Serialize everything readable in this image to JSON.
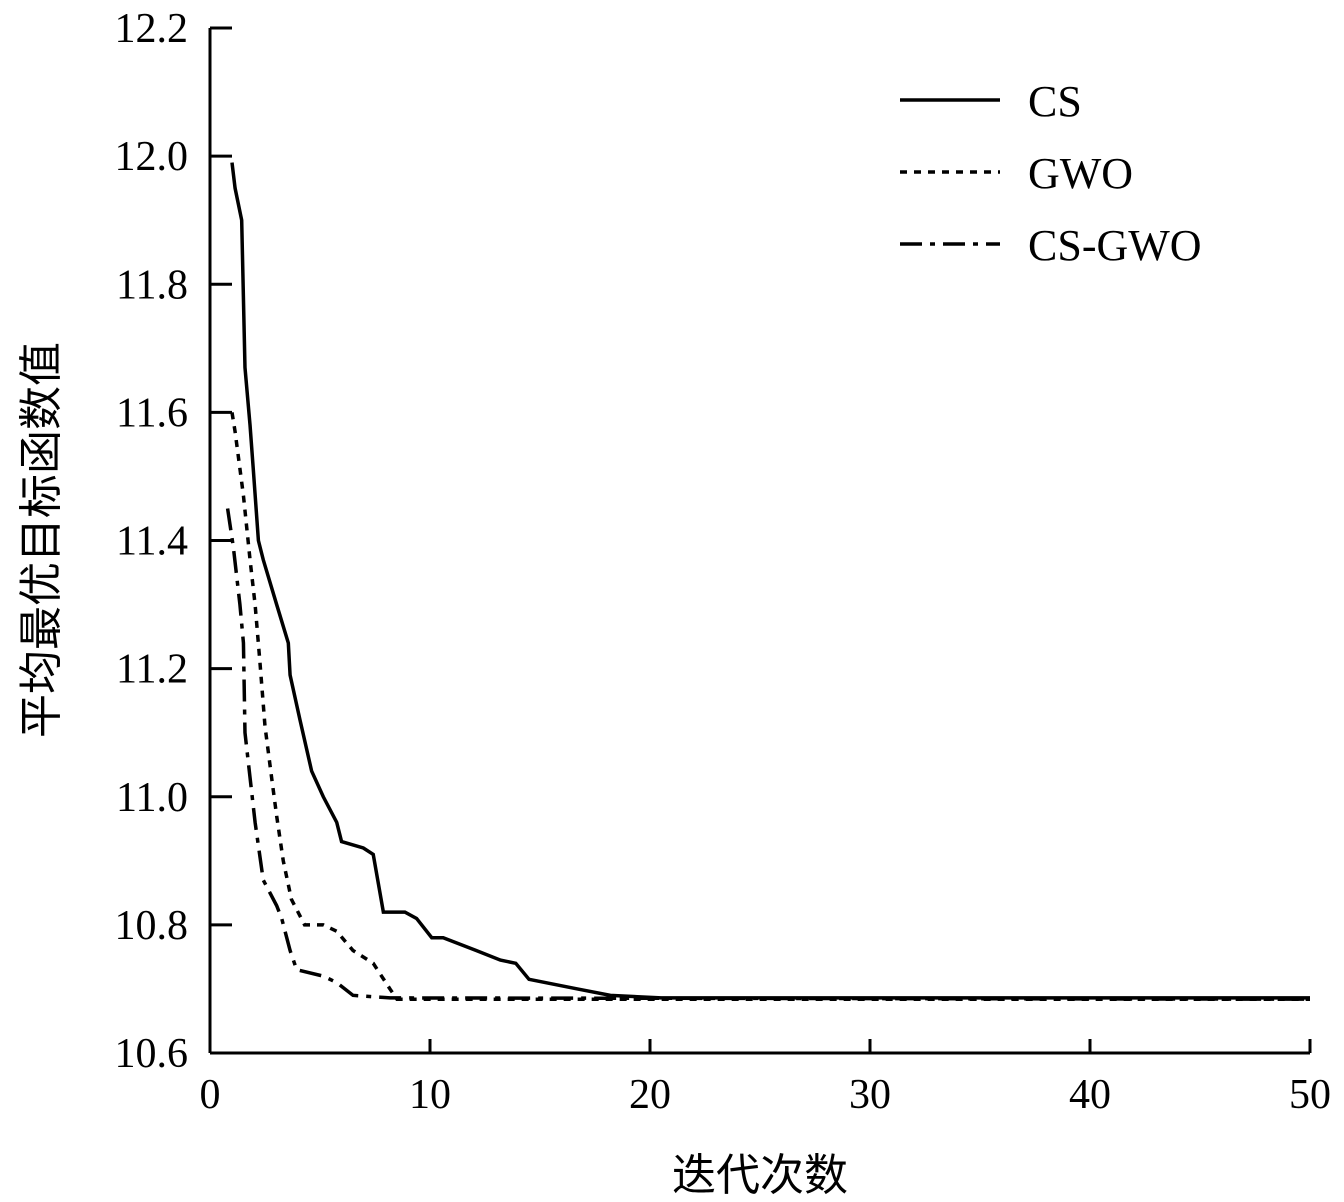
{
  "chart_data": {
    "type": "line",
    "title": "",
    "xlabel": "迭代次数",
    "ylabel": "平均最优目标函数值",
    "xlim": [
      0,
      50
    ],
    "ylim": [
      10.6,
      12.2
    ],
    "xticks": [
      0,
      10,
      20,
      30,
      40,
      50
    ],
    "xtick_labels": [
      "0",
      "10",
      "20",
      "30",
      "40",
      "50"
    ],
    "yticks": [
      10.6,
      10.8,
      11.0,
      11.2,
      11.4,
      11.6,
      11.8,
      12.0,
      12.2
    ],
    "ytick_labels": [
      "10.6",
      "10.8",
      "11.0",
      "11.2",
      "11.4",
      "11.6",
      "11.8",
      "12.0",
      "12.2"
    ],
    "grid": false,
    "legend_position": "top-right",
    "series": [
      {
        "name": "CS",
        "style": "solid",
        "x": [
          1.0,
          1.14,
          1.44,
          1.59,
          1.82,
          1.97,
          2.2,
          2.42,
          3.03,
          3.56,
          3.64,
          4.09,
          4.62,
          5.15,
          5.76,
          5.98,
          6.97,
          7.42,
          7.88,
          8.86,
          9.39,
          10.08,
          10.6,
          12.1,
          13.2,
          13.9,
          14.5,
          16.7,
          18.2,
          20.5,
          50
        ],
        "y": [
          11.99,
          11.95,
          11.9,
          11.67,
          11.58,
          11.51,
          11.4,
          11.37,
          11.3,
          11.24,
          11.19,
          11.12,
          11.04,
          11.0,
          10.96,
          10.93,
          10.92,
          10.91,
          10.82,
          10.82,
          10.81,
          10.78,
          10.78,
          10.76,
          10.745,
          10.74,
          10.715,
          10.7,
          10.69,
          10.686,
          10.686
        ]
      },
      {
        "name": "GWO",
        "style": "dotted",
        "x": [
          1.0,
          1.14,
          1.52,
          1.82,
          2.05,
          2.27,
          2.5,
          2.8,
          3.03,
          3.33,
          3.7,
          4.3,
          5.15,
          5.76,
          6.5,
          7.42,
          8.18,
          8.5,
          50
        ],
        "y": [
          11.6,
          11.57,
          11.47,
          11.37,
          11.3,
          11.21,
          11.11,
          11.03,
          10.97,
          10.9,
          10.84,
          10.8,
          10.8,
          10.79,
          10.76,
          10.74,
          10.7,
          10.684,
          10.684
        ]
      },
      {
        "name": "CS-GWO",
        "style": "dash-dot",
        "x": [
          0.8,
          1.06,
          1.36,
          1.52,
          1.59,
          1.82,
          2.05,
          2.42,
          3.03,
          3.26,
          3.64,
          3.94,
          5.15,
          5.76,
          6.5,
          8.18,
          50
        ],
        "y": [
          11.45,
          11.39,
          11.3,
          11.24,
          11.1,
          11.03,
          10.96,
          10.87,
          10.83,
          10.81,
          10.76,
          10.73,
          10.72,
          10.71,
          10.69,
          10.686,
          10.684
        ]
      }
    ]
  }
}
